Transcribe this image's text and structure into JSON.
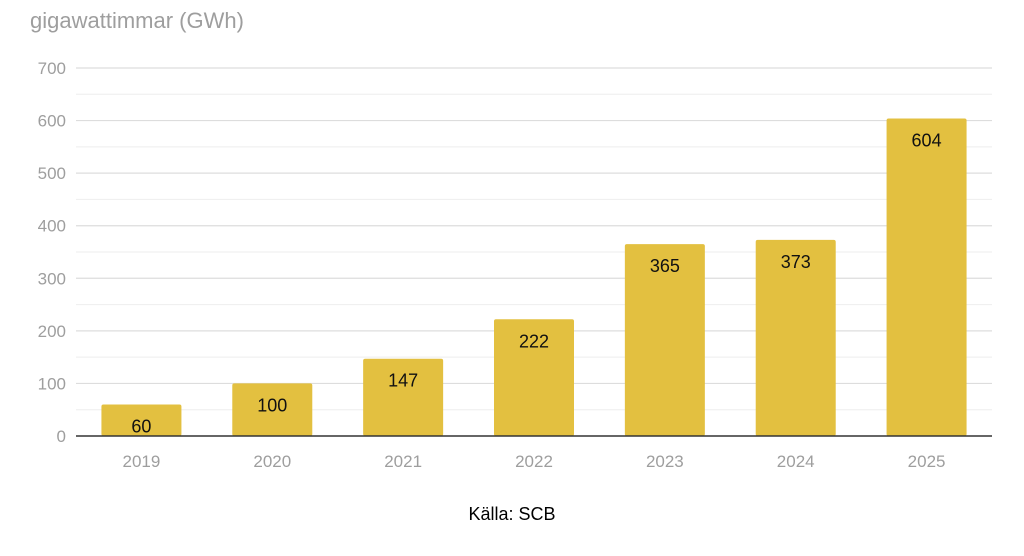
{
  "unit_label": "gigawattimmar (GWh)",
  "source": "Källa: SCB",
  "colors": {
    "bar": "#e3c040",
    "grid": "#dddddd",
    "axis": "#333333",
    "tick_text": "#9e9e9e",
    "value_text": "#111111"
  },
  "chart_data": {
    "type": "bar",
    "categories": [
      "2019",
      "2020",
      "2021",
      "2022",
      "2023",
      "2024",
      "2025"
    ],
    "values": [
      60,
      100,
      147,
      222,
      365,
      373,
      604
    ],
    "value_labels": [
      "60",
      "100",
      "147",
      "222",
      "365",
      "373",
      "604"
    ],
    "ylabel": "gigawattimmar (GWh)",
    "ylim": [
      0,
      700
    ],
    "yticks": [
      0,
      100,
      200,
      300,
      400,
      500,
      600,
      700
    ],
    "ytick_labels": [
      "0",
      "100",
      "200",
      "300",
      "400",
      "500",
      "600",
      "700"
    ],
    "minor_grid_step": 50,
    "grid": true,
    "legend": "none"
  }
}
